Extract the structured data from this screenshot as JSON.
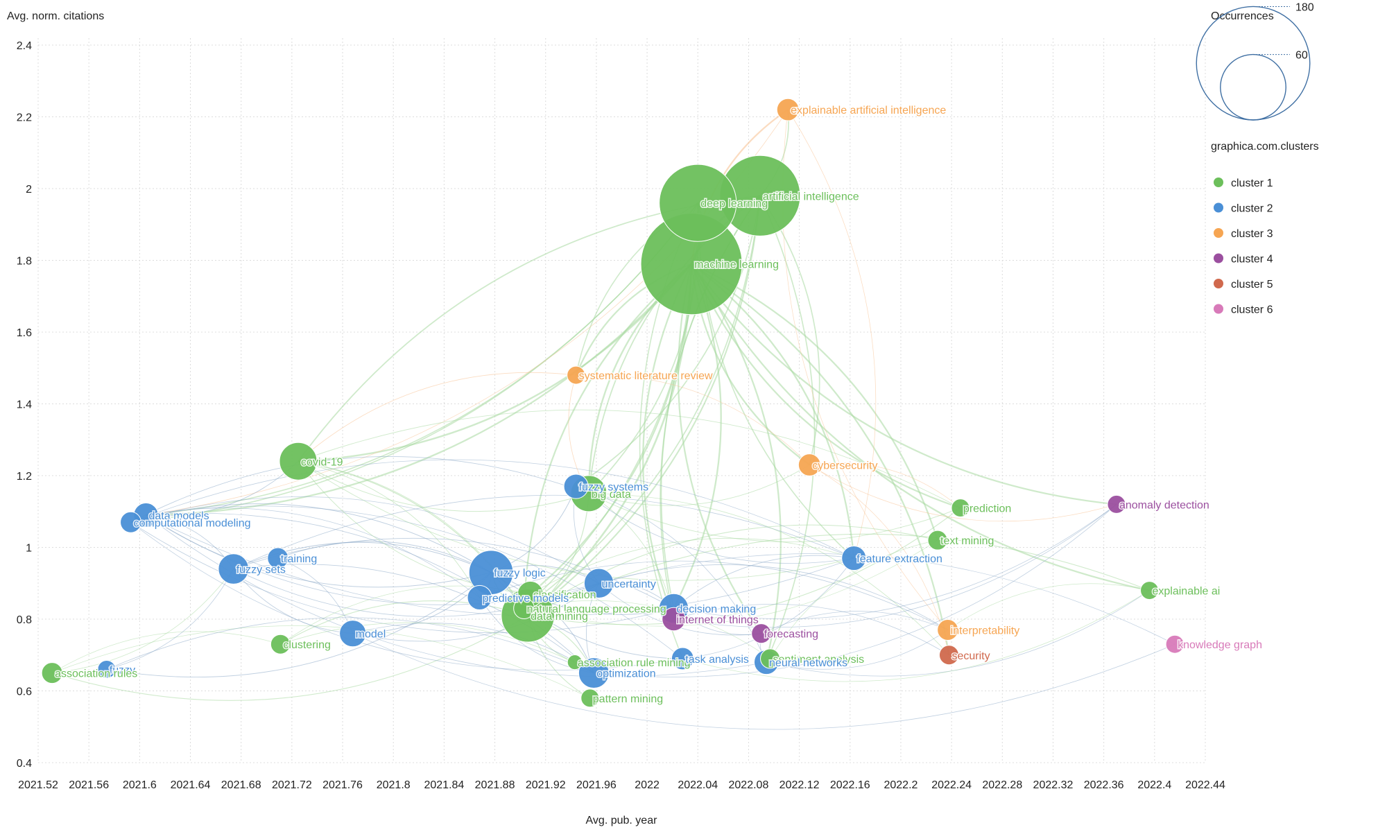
{
  "chart_data": {
    "type": "scatter",
    "subtype": "bubble-network",
    "xlabel": "Avg. pub. year",
    "ylabel": "Avg. norm. citations",
    "xlim": [
      2021.52,
      2022.44
    ],
    "ylim": [
      0.4,
      2.4
    ],
    "x_ticks": [
      "2021.52",
      "2021.56",
      "2021.6",
      "2021.64",
      "2021.68",
      "2021.72",
      "2021.76",
      "2021.8",
      "2021.84",
      "2021.88",
      "2021.92",
      "2021.96",
      "2022",
      "2022.04",
      "2022.08",
      "2022.12",
      "2022.16",
      "2022.2",
      "2022.24",
      "2022.28",
      "2022.32",
      "2022.36",
      "2022.4",
      "2022.44"
    ],
    "y_ticks": [
      "0.4",
      "0.6",
      "0.8",
      "1",
      "1.2",
      "1.4",
      "1.6",
      "1.8",
      "2",
      "2.2",
      "2.4"
    ],
    "grid": true,
    "size_legend": {
      "title": "Occurrences",
      "values": [
        180,
        60
      ]
    },
    "color_legend": {
      "title": "graphica.com.clusters",
      "position": "top-right",
      "clusters": [
        {
          "id": 1,
          "label": "cluster 1",
          "color": "#6cbf5b"
        },
        {
          "id": 2,
          "label": "cluster 2",
          "color": "#4a8fd6"
        },
        {
          "id": 3,
          "label": "cluster 3",
          "color": "#f6a552"
        },
        {
          "id": 4,
          "label": "cluster 4",
          "color": "#9b4f9f"
        },
        {
          "id": 5,
          "label": "cluster 5",
          "color": "#d0694d"
        },
        {
          "id": 6,
          "label": "cluster 6",
          "color": "#d87ab9"
        }
      ]
    },
    "nodes": [
      {
        "label": "machine learning",
        "x": 2022.035,
        "y": 1.79,
        "occurrences": 190,
        "cluster": 1
      },
      {
        "label": "deep learning",
        "x": 2022.04,
        "y": 1.96,
        "occurrences": 110,
        "cluster": 1
      },
      {
        "label": "artificial intelligence",
        "x": 2022.089,
        "y": 1.98,
        "occurrences": 120,
        "cluster": 1
      },
      {
        "label": "explainable artificial intelligence",
        "x": 2022.111,
        "y": 2.22,
        "occurrences": 9,
        "cluster": 3
      },
      {
        "label": "systematic literature review",
        "x": 2021.944,
        "y": 1.48,
        "occurrences": 6,
        "cluster": 3
      },
      {
        "label": "cybersecurity",
        "x": 2022.128,
        "y": 1.23,
        "occurrences": 9,
        "cluster": 3
      },
      {
        "label": "covid-19",
        "x": 2021.725,
        "y": 1.24,
        "occurrences": 26,
        "cluster": 1
      },
      {
        "label": "big data",
        "x": 2021.954,
        "y": 1.15,
        "occurrences": 24,
        "cluster": 1
      },
      {
        "label": "fuzzy systems",
        "x": 2021.944,
        "y": 1.17,
        "occurrences": 11,
        "cluster": 2
      },
      {
        "label": "data models",
        "x": 2021.605,
        "y": 1.09,
        "occurrences": 11,
        "cluster": 2
      },
      {
        "label": "computational modeling",
        "x": 2021.593,
        "y": 1.07,
        "occurrences": 8,
        "cluster": 2
      },
      {
        "label": "prediction",
        "x": 2022.247,
        "y": 1.11,
        "occurrences": 6,
        "cluster": 1
      },
      {
        "label": "anomaly detection",
        "x": 2022.37,
        "y": 1.12,
        "occurrences": 6,
        "cluster": 4
      },
      {
        "label": "text mining",
        "x": 2022.229,
        "y": 1.02,
        "occurrences": 7,
        "cluster": 1
      },
      {
        "label": "feature extraction",
        "x": 2022.163,
        "y": 0.97,
        "occurrences": 11,
        "cluster": 2
      },
      {
        "label": "training",
        "x": 2021.709,
        "y": 0.97,
        "occurrences": 8,
        "cluster": 2
      },
      {
        "label": "fuzzy sets",
        "x": 2021.674,
        "y": 0.94,
        "occurrences": 17,
        "cluster": 2
      },
      {
        "label": "fuzzy logic",
        "x": 2021.877,
        "y": 0.93,
        "occurrences": 36,
        "cluster": 2
      },
      {
        "label": "classification",
        "x": 2021.908,
        "y": 0.87,
        "occurrences": 12,
        "cluster": 1
      },
      {
        "label": "uncertainty",
        "x": 2021.962,
        "y": 0.9,
        "occurrences": 16,
        "cluster": 2
      },
      {
        "label": "predictive models",
        "x": 2021.868,
        "y": 0.86,
        "occurrences": 11,
        "cluster": 2
      },
      {
        "label": "natural language processing",
        "x": 2021.903,
        "y": 0.83,
        "occurrences": 8,
        "cluster": 1
      },
      {
        "label": "data mining",
        "x": 2021.906,
        "y": 0.81,
        "occurrences": 52,
        "cluster": 1
      },
      {
        "label": "decision making",
        "x": 2022.021,
        "y": 0.83,
        "occurrences": 16,
        "cluster": 2
      },
      {
        "label": "internet of things",
        "x": 2022.021,
        "y": 0.8,
        "occurrences": 10,
        "cluster": 4
      },
      {
        "label": "forecasting",
        "x": 2022.09,
        "y": 0.76,
        "occurrences": 7,
        "cluster": 4
      },
      {
        "label": "interpretability",
        "x": 2022.237,
        "y": 0.77,
        "occurrences": 8,
        "cluster": 3
      },
      {
        "label": "security",
        "x": 2022.238,
        "y": 0.7,
        "occurrences": 7,
        "cluster": 5
      },
      {
        "label": "explainable ai",
        "x": 2022.396,
        "y": 0.88,
        "occurrences": 6,
        "cluster": 1
      },
      {
        "label": "knowledge graph",
        "x": 2022.416,
        "y": 0.73,
        "occurrences": 6,
        "cluster": 6
      },
      {
        "label": "clustering",
        "x": 2021.711,
        "y": 0.73,
        "occurrences": 7,
        "cluster": 1
      },
      {
        "label": "model",
        "x": 2021.768,
        "y": 0.76,
        "occurrences": 13,
        "cluster": 2
      },
      {
        "label": "fuzzy",
        "x": 2021.574,
        "y": 0.66,
        "occurrences": 6,
        "cluster": 2
      },
      {
        "label": "association rules",
        "x": 2021.531,
        "y": 0.65,
        "occurrences": 8,
        "cluster": 1
      },
      {
        "label": "association rule mining",
        "x": 2021.943,
        "y": 0.68,
        "occurrences": 4,
        "cluster": 1
      },
      {
        "label": "task analysis",
        "x": 2022.028,
        "y": 0.69,
        "occurrences": 9,
        "cluster": 2
      },
      {
        "label": "sentiment analysis",
        "x": 2022.097,
        "y": 0.69,
        "occurrences": 7,
        "cluster": 1
      },
      {
        "label": "neural networks",
        "x": 2022.094,
        "y": 0.68,
        "occurrences": 11,
        "cluster": 2
      },
      {
        "label": "optimization",
        "x": 2021.958,
        "y": 0.65,
        "occurrences": 17,
        "cluster": 2
      },
      {
        "label": "pattern mining",
        "x": 2021.955,
        "y": 0.58,
        "occurrences": 6,
        "cluster": 1
      }
    ],
    "links": [
      [
        "machine learning",
        "deep learning"
      ],
      [
        "machine learning",
        "artificial intelligence"
      ],
      [
        "machine learning",
        "big data"
      ],
      [
        "machine learning",
        "data mining"
      ],
      [
        "machine learning",
        "cybersecurity"
      ],
      [
        "machine learning",
        "classification"
      ],
      [
        "machine learning",
        "systematic literature review"
      ],
      [
        "machine learning",
        "feature extraction"
      ],
      [
        "machine learning",
        "prediction"
      ],
      [
        "machine learning",
        "text mining"
      ],
      [
        "machine learning",
        "natural language processing"
      ],
      [
        "machine learning",
        "covid-19"
      ],
      [
        "machine learning",
        "internet of things"
      ],
      [
        "machine learning",
        "neural networks"
      ],
      [
        "machine learning",
        "explainable ai"
      ],
      [
        "machine learning",
        "data models"
      ],
      [
        "machine learning",
        "anomaly detection"
      ],
      [
        "machine learning",
        "security"
      ],
      [
        "machine learning",
        "forecasting"
      ],
      [
        "machine learning",
        "decision making"
      ],
      [
        "deep learning",
        "artificial intelligence"
      ],
      [
        "deep learning",
        "data models"
      ],
      [
        "deep learning",
        "feature extraction"
      ],
      [
        "deep learning",
        "natural language processing"
      ],
      [
        "deep learning",
        "task analysis"
      ],
      [
        "deep learning",
        "big data"
      ],
      [
        "deep learning",
        "systematic literature review"
      ],
      [
        "deep learning",
        "computational modeling"
      ],
      [
        "artificial intelligence",
        "explainable artificial intelligence"
      ],
      [
        "artificial intelligence",
        "data mining"
      ],
      [
        "artificial intelligence",
        "big data"
      ],
      [
        "artificial intelligence",
        "neural networks"
      ],
      [
        "artificial intelligence",
        "decision making"
      ],
      [
        "artificial intelligence",
        "cybersecurity"
      ],
      [
        "artificial intelligence",
        "covid-19"
      ],
      [
        "artificial intelligence",
        "natural language processing"
      ],
      [
        "artificial intelligence",
        "internet of things"
      ],
      [
        "artificial intelligence",
        "fuzzy systems"
      ],
      [
        "explainable artificial intelligence",
        "interpretability"
      ],
      [
        "explainable artificial intelligence",
        "data models"
      ],
      [
        "explainable artificial intelligence",
        "machine learning"
      ],
      [
        "explainable artificial intelligence",
        "feature extraction"
      ],
      [
        "data mining",
        "big data"
      ],
      [
        "data mining",
        "association rules"
      ],
      [
        "data mining",
        "clustering"
      ],
      [
        "data mining",
        "classification"
      ],
      [
        "data mining",
        "pattern mining"
      ],
      [
        "data mining",
        "fuzzy logic"
      ],
      [
        "data mining",
        "covid-19"
      ],
      [
        "data mining",
        "text mining"
      ],
      [
        "data mining",
        "association rule mining"
      ],
      [
        "data mining",
        "optimization"
      ],
      [
        "data mining",
        "prediction"
      ],
      [
        "data mining",
        "explainable ai"
      ],
      [
        "fuzzy logic",
        "fuzzy sets"
      ],
      [
        "fuzzy logic",
        "data models"
      ],
      [
        "fuzzy logic",
        "computational modeling"
      ],
      [
        "fuzzy logic",
        "uncertainty"
      ],
      [
        "fuzzy logic",
        "decision making"
      ],
      [
        "fuzzy logic",
        "model"
      ],
      [
        "fuzzy logic",
        "training"
      ],
      [
        "fuzzy logic",
        "optimization"
      ],
      [
        "fuzzy logic",
        "fuzzy systems"
      ],
      [
        "fuzzy logic",
        "predictive models"
      ],
      [
        "fuzzy logic",
        "task analysis"
      ],
      [
        "fuzzy logic",
        "fuzzy"
      ],
      [
        "fuzzy sets",
        "uncertainty"
      ],
      [
        "fuzzy sets",
        "decision making"
      ],
      [
        "fuzzy sets",
        "model"
      ],
      [
        "fuzzy sets",
        "optimization"
      ],
      [
        "fuzzy sets",
        "data models"
      ],
      [
        "fuzzy sets",
        "feature extraction"
      ],
      [
        "data models",
        "uncertainty"
      ],
      [
        "data models",
        "predictive models"
      ],
      [
        "data models",
        "feature extraction"
      ],
      [
        "data models",
        "task analysis"
      ],
      [
        "data models",
        "covid-19"
      ],
      [
        "data models",
        "optimization"
      ],
      [
        "data models",
        "neural networks"
      ],
      [
        "computational modeling",
        "uncertainty"
      ],
      [
        "computational modeling",
        "decision making"
      ],
      [
        "computational modeling",
        "feature extraction"
      ],
      [
        "computational modeling",
        "task analysis"
      ],
      [
        "computational modeling",
        "big data"
      ],
      [
        "covid-19",
        "big data"
      ],
      [
        "covid-19",
        "natural language processing"
      ],
      [
        "covid-19",
        "classification"
      ],
      [
        "covid-19",
        "predictive models"
      ],
      [
        "covid-19",
        "feature extraction"
      ],
      [
        "covid-19",
        "prediction"
      ],
      [
        "big data",
        "cybersecurity"
      ],
      [
        "big data",
        "internet of things"
      ],
      [
        "big data",
        "prediction"
      ],
      [
        "big data",
        "security"
      ],
      [
        "fuzzy systems",
        "uncertainty"
      ],
      [
        "fuzzy systems",
        "neural networks"
      ],
      [
        "fuzzy systems",
        "feature extraction"
      ],
      [
        "uncertainty",
        "decision making"
      ],
      [
        "uncertainty",
        "optimization"
      ],
      [
        "uncertainty",
        "model"
      ],
      [
        "uncertainty",
        "forecasting"
      ],
      [
        "uncertainty",
        "interpretability"
      ],
      [
        "model",
        "training"
      ],
      [
        "model",
        "optimization"
      ],
      [
        "model",
        "knowledge graph"
      ],
      [
        "decision making",
        "internet of things"
      ],
      [
        "decision making",
        "forecasting"
      ],
      [
        "decision making",
        "feature extraction"
      ],
      [
        "decision making",
        "anomaly detection"
      ],
      [
        "internet of things",
        "security"
      ],
      [
        "internet of things",
        "anomaly detection"
      ],
      [
        "cybersecurity",
        "security"
      ],
      [
        "cybersecurity",
        "anomaly detection"
      ],
      [
        "cybersecurity",
        "prediction"
      ],
      [
        "neural networks",
        "interpretability"
      ],
      [
        "neural networks",
        "forecasting"
      ],
      [
        "neural networks",
        "explainable ai"
      ],
      [
        "forecasting",
        "interpretability"
      ],
      [
        "sentiment analysis",
        "natural language processing"
      ],
      [
        "sentiment analysis",
        "text mining"
      ],
      [
        "task analysis",
        "feature extraction"
      ],
      [
        "text mining",
        "natural language processing"
      ],
      [
        "classification",
        "clustering"
      ],
      [
        "classification",
        "feature extraction"
      ],
      [
        "clustering",
        "association rules"
      ],
      [
        "clustering",
        "optimization"
      ],
      [
        "association rules",
        "fuzzy sets"
      ],
      [
        "association rules",
        "pattern mining"
      ],
      [
        "fuzzy",
        "fuzzy sets"
      ],
      [
        "fuzzy",
        "optimization"
      ],
      [
        "predictive models",
        "optimization"
      ],
      [
        "predictive models",
        "interpretability"
      ],
      [
        "explainable ai",
        "interpretability"
      ],
      [
        "explainable ai",
        "task analysis"
      ],
      [
        "knowledge graph",
        "natural language processing"
      ],
      [
        "anomaly detection",
        "optimization"
      ],
      [
        "systematic literature review",
        "big data"
      ],
      [
        "systematic literature review",
        "cybersecurity"
      ],
      [
        "systematic literature review",
        "covid-19"
      ]
    ]
  }
}
